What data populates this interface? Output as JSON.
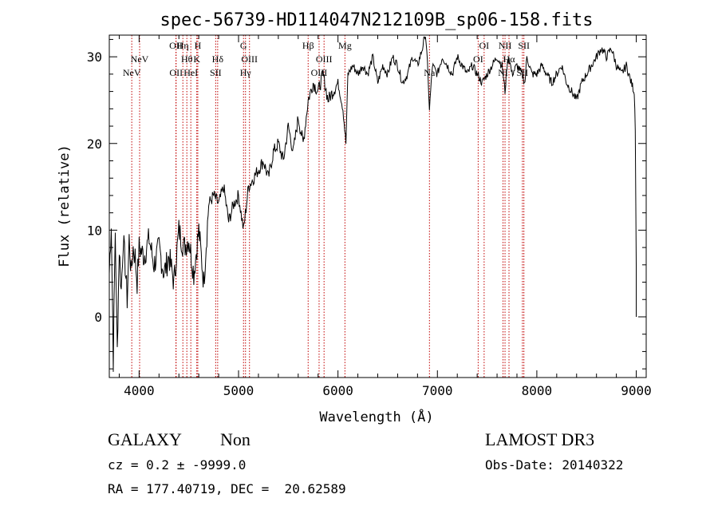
{
  "chart_data": {
    "type": "line",
    "title": "spec-56739-HD114047N212109B_sp06-158.fits",
    "xlabel": "Wavelength (Å)",
    "ylabel": "Flux (relative)",
    "xlim": [
      3700,
      9100
    ],
    "ylim": [
      -7,
      32.5
    ],
    "xticks": [
      4000,
      5000,
      6000,
      7000,
      8000,
      9000
    ],
    "xtick_labels": [
      "4000",
      "5000",
      "6000",
      "7000",
      "8000",
      "9000"
    ],
    "yticks": [
      0,
      10,
      20,
      30
    ],
    "ytick_labels": [
      "0",
      "10",
      "20",
      "30"
    ],
    "series": [
      {
        "name": "flux",
        "x": [
          3700,
          3720,
          3740,
          3760,
          3780,
          3800,
          3820,
          3840,
          3860,
          3880,
          3900,
          3920,
          3940,
          3960,
          3980,
          4000,
          4050,
          4100,
          4150,
          4200,
          4250,
          4300,
          4350,
          4400,
          4450,
          4500,
          4550,
          4600,
          4650,
          4700,
          4750,
          4800,
          4850,
          4900,
          4950,
          5000,
          5050,
          5100,
          5150,
          5200,
          5250,
          5300,
          5350,
          5400,
          5450,
          5500,
          5550,
          5600,
          5650,
          5700,
          5750,
          5800,
          5850,
          5900,
          5950,
          6000,
          6050,
          6080,
          6100,
          6150,
          6200,
          6250,
          6300,
          6350,
          6400,
          6450,
          6500,
          6550,
          6600,
          6650,
          6700,
          6750,
          6800,
          6850,
          6880,
          6900,
          6920,
          6950,
          7000,
          7050,
          7100,
          7150,
          7200,
          7250,
          7300,
          7350,
          7400,
          7450,
          7500,
          7550,
          7600,
          7650,
          7680,
          7700,
          7720,
          7750,
          7800,
          7850,
          7880,
          7900,
          7950,
          8000,
          8050,
          8100,
          8150,
          8200,
          8250,
          8300,
          8350,
          8400,
          8450,
          8500,
          8550,
          8600,
          8650,
          8700,
          8750,
          8800,
          8850,
          8900,
          8950,
          8980,
          8990,
          9000
        ],
        "values": [
          5,
          11,
          -5,
          10,
          -4,
          8,
          3,
          9,
          6,
          2,
          9,
          5,
          8,
          7,
          4,
          8,
          7,
          9,
          6,
          8,
          5,
          7,
          4,
          10,
          8,
          9,
          5,
          10,
          4,
          13,
          14,
          13,
          15,
          11,
          13,
          14,
          10,
          15,
          16,
          17,
          18,
          16,
          19,
          20,
          18,
          22,
          19,
          23,
          20,
          25,
          27,
          26,
          28,
          25,
          26,
          27,
          24,
          20,
          28,
          29,
          28,
          29,
          28,
          30,
          27,
          29,
          28,
          30,
          29,
          27,
          28,
          30,
          29,
          31,
          33,
          29,
          24,
          29,
          28,
          30,
          29,
          28,
          30,
          29,
          28,
          29,
          28,
          27,
          28,
          29,
          30,
          29,
          26,
          29,
          30,
          28,
          29,
          28,
          27,
          30,
          28,
          28,
          29,
          28,
          27,
          28,
          29,
          27,
          26,
          25,
          27,
          28,
          29,
          30,
          31,
          30,
          31,
          29,
          28,
          29,
          27,
          26,
          22,
          6
        ]
      }
    ],
    "lines": [
      {
        "name": "NeV",
        "x": 3926,
        "label_row": 3
      },
      {
        "name": "NeV",
        "x": 4005,
        "label_row": 2
      },
      {
        "name": "OII",
        "x": 4370,
        "label_row": 1
      },
      {
        "name": "OII",
        "x": 4372,
        "label_row": 3
      },
      {
        "name": "Hη",
        "x": 4440,
        "label_row": 1
      },
      {
        "name": "Hθ",
        "x": 4480,
        "label_row": 2
      },
      {
        "name": "HeI",
        "x": 4520,
        "label_row": 3
      },
      {
        "name": "H",
        "x": 4590,
        "label_row": 1
      },
      {
        "name": "K",
        "x": 4580,
        "label_row": 2
      },
      {
        "name": "Hδ",
        "x": 4790,
        "label_row": 2
      },
      {
        "name": "SII",
        "x": 4770,
        "label_row": 3
      },
      {
        "name": "G",
        "x": 5050,
        "label_row": 1
      },
      {
        "name": "OIII",
        "x": 5110,
        "label_row": 2
      },
      {
        "name": "Hγ",
        "x": 5070,
        "label_row": 3
      },
      {
        "name": "Hβ",
        "x": 5700,
        "label_row": 1
      },
      {
        "name": "OIII",
        "x": 5860,
        "label_row": 2
      },
      {
        "name": "OIII",
        "x": 5810,
        "label_row": 3
      },
      {
        "name": "Mg",
        "x": 6070,
        "label_row": 1
      },
      {
        "name": "Na",
        "x": 6920,
        "label_row": 3
      },
      {
        "name": "OI",
        "x": 7470,
        "label_row": 1
      },
      {
        "name": "OI",
        "x": 7410,
        "label_row": 2
      },
      {
        "name": "NII",
        "x": 7680,
        "label_row": 1
      },
      {
        "name": "SII",
        "x": 7870,
        "label_row": 1
      },
      {
        "name": "NI",
        "x": 7660,
        "label_row": 3
      },
      {
        "name": "Hα",
        "x": 7720,
        "label_row": 2
      },
      {
        "name": "SII",
        "x": 7855,
        "label_row": 3
      }
    ]
  },
  "info": {
    "class_label": "GALAXY",
    "subclass_label": "Non",
    "survey": "LAMOST DR3",
    "cz_text": "cz = 0.2 ± -9999.0",
    "obs_date_text": "Obs-Date: 20140322",
    "coords_text": "RA = 177.40719, DEC =  20.62589"
  },
  "colors": {
    "line_marker": "#c00000",
    "spectrum": "#000000"
  }
}
